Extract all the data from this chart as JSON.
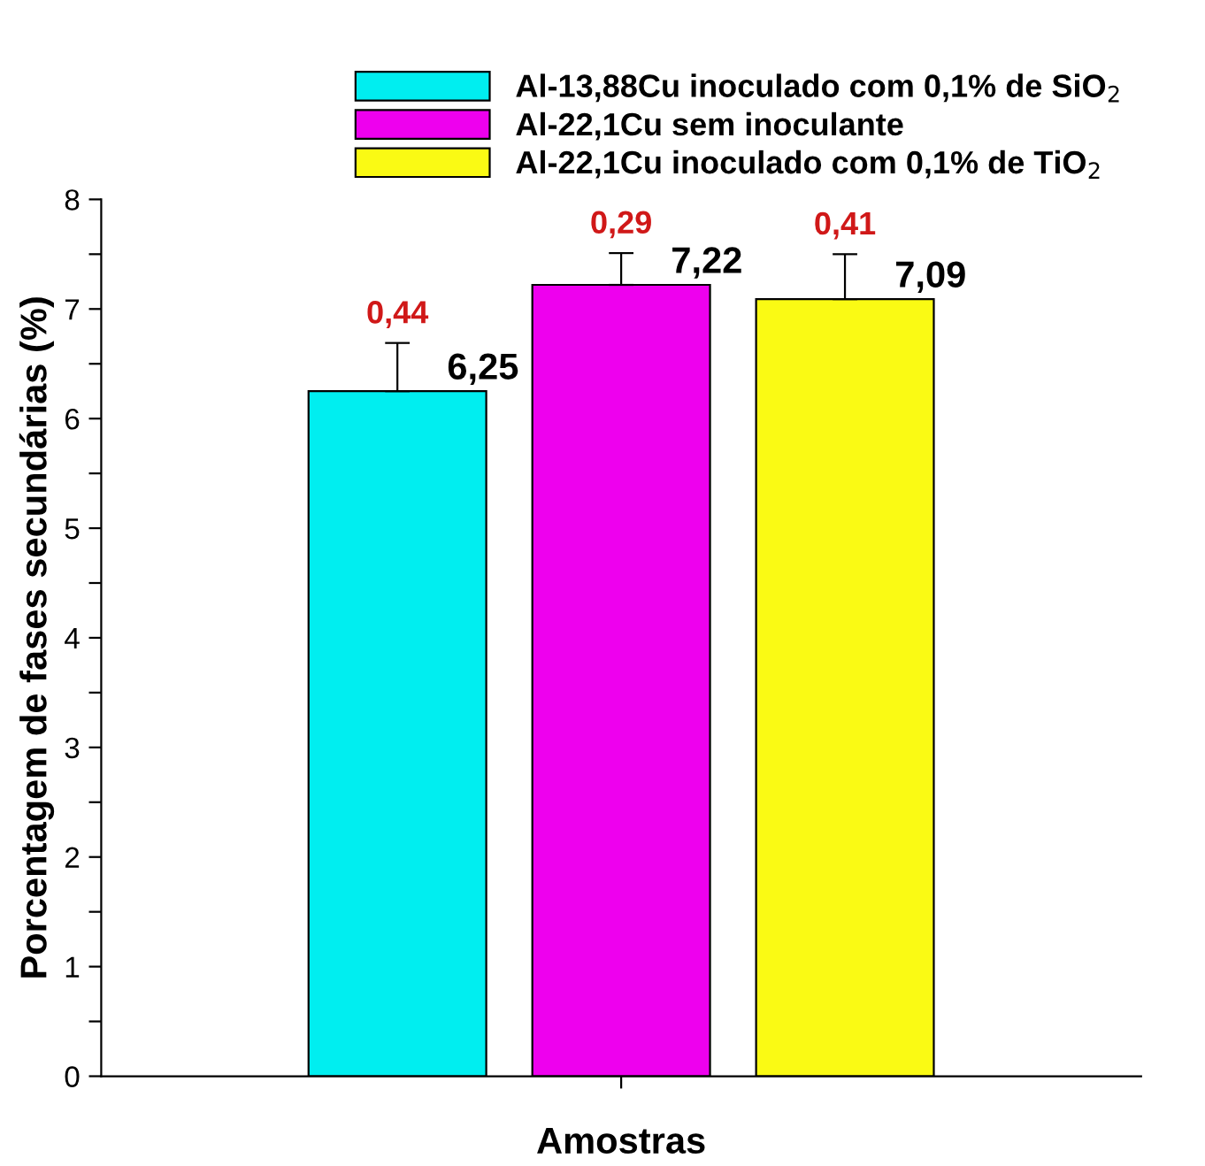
{
  "chart_data": {
    "type": "bar",
    "xlabel": "Amostras",
    "ylabel": "Porcentagem de fases secundárias (%)",
    "categories": [
      null
    ],
    "series": [
      {
        "name": "Al-13,88Cu inoculado com 0,1% de SiO$_{2}$",
        "color": "#00eef0",
        "values": [
          6.25
        ],
        "value_labels": [
          "6,25"
        ],
        "errors": [
          [
            6.25,
            6.69
          ]
        ]
      },
      {
        "name": "Al-22,1Cu sem inoculante",
        "color": "#ee00ee",
        "values": [
          7.22
        ],
        "value_labels": [
          "7,22"
        ],
        "errors": [
          [
            7.22,
            7.51
          ]
        ]
      },
      {
        "name": "Al-22,1Cu inoculado com 0,1% de TiO$_{2}$",
        "color": "#fafa14",
        "values": [
          7.09
        ],
        "value_labels": [
          "7,09"
        ],
        "errors": [
          [
            7.09,
            7.5
          ]
        ]
      }
    ],
    "annotations": [
      {
        "text": "0,44",
        "y": 6.69
      },
      {
        "text": "0,29",
        "y": 7.51
      },
      {
        "text": "0,41",
        "y": 7.5
      }
    ],
    "ylim": [
      0,
      8
    ],
    "yticks": [
      0,
      {
        "value": 0.5,
        "label": null
      },
      1,
      {
        "value": 1.5,
        "label": null
      },
      2,
      {
        "value": 2.5,
        "label": null
      },
      3,
      {
        "value": 3.5,
        "label": null
      },
      4,
      {
        "value": 4.5,
        "label": null
      },
      5,
      {
        "value": 5.5,
        "label": null
      },
      6,
      {
        "value": 6.5,
        "label": null
      },
      7,
      {
        "value": 7.5,
        "label": null
      },
      8
    ],
    "grid": false,
    "legend": "top"
  }
}
